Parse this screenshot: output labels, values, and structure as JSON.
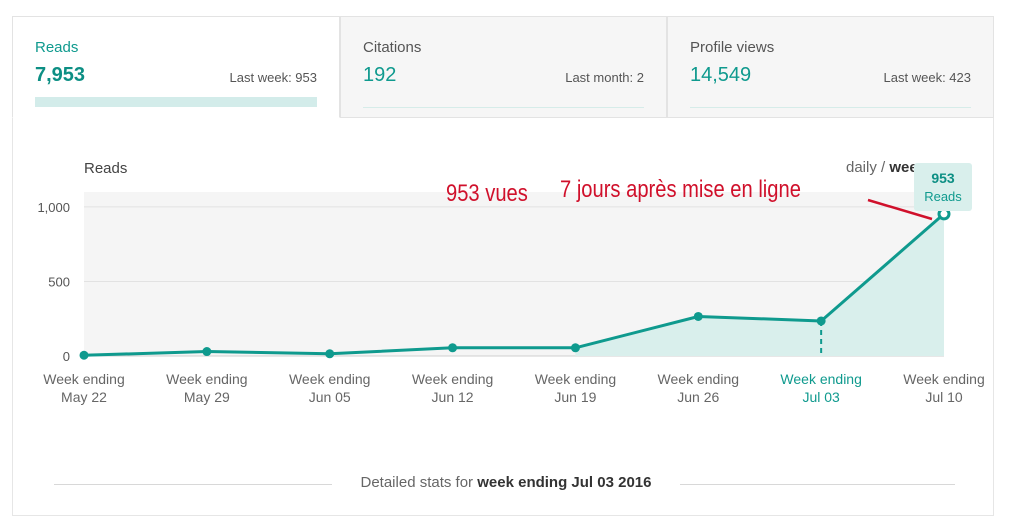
{
  "tabs": [
    {
      "label": "Reads",
      "value": "7,953",
      "sub": "Last week: 953",
      "active": true
    },
    {
      "label": "Citations",
      "value": "192",
      "sub": "Last month: 2",
      "active": false
    },
    {
      "label": "Profile views",
      "value": "14,549",
      "sub": "Last week: 423",
      "active": false
    }
  ],
  "toggle": {
    "daily": "daily",
    "separator": "/",
    "weekly": "wee"
  },
  "tooltip": {
    "value": "953",
    "label": "Reads"
  },
  "annotations": {
    "first": "953 vues",
    "second": "7 jours après mise en ligne"
  },
  "detail": {
    "prefix": "Detailed stats for",
    "strong": "week ending Jul 03 2016"
  },
  "colors": {
    "accent": "#0f9a8e",
    "fill": "#d9efec",
    "annotation": "#d0102b"
  },
  "chart_data": {
    "type": "area",
    "title": "Reads",
    "categories": [
      [
        "Week ending",
        "May 22"
      ],
      [
        "Week ending",
        "May 29"
      ],
      [
        "Week ending",
        "Jun 05"
      ],
      [
        "Week ending",
        "Jun 12"
      ],
      [
        "Week ending",
        "Jun 19"
      ],
      [
        "Week ending",
        "Jun 26"
      ],
      [
        "Week ending",
        "Jul 03"
      ],
      [
        "Week ending",
        "Jul 10"
      ]
    ],
    "series": [
      {
        "values": [
          5,
          30,
          15,
          55,
          55,
          265,
          235,
          953
        ]
      }
    ],
    "yticks": [
      0,
      500,
      1000
    ],
    "ytick_labels": [
      "0",
      "500",
      "1,000"
    ],
    "ylim": [
      0,
      1100
    ],
    "highlight_index": 6,
    "fill_from_index": 4,
    "grid": true
  }
}
